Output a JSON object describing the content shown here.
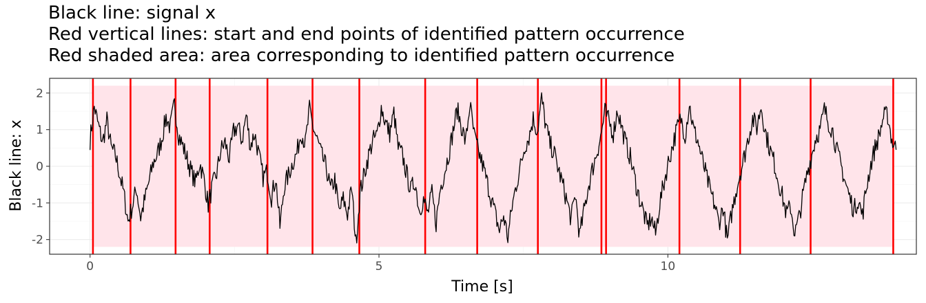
{
  "chart_data": {
    "type": "line",
    "title_lines": [
      "Black line: signal x",
      "Red vertical lines: start and end points of identified pattern occurrence",
      "Red shaded area: area corresponding to identified pattern occurrence"
    ],
    "xlabel": "Time [s]",
    "ylabel": "Black line: x",
    "xlim": [
      -0.7,
      14.3
    ],
    "ylim": [
      -2.4,
      2.4
    ],
    "x_ticks": [
      0,
      5,
      10
    ],
    "x_tick_labels": [
      "0",
      "5",
      "10"
    ],
    "y_ticks": [
      2,
      1,
      0,
      -1,
      -2
    ],
    "y_tick_labels": [
      "2",
      "1",
      "0",
      "-1",
      "-2"
    ],
    "grid": true,
    "theme": "bw",
    "shaded_region": {
      "x_start": 0.05,
      "x_end": 13.9,
      "y_min": -2.2,
      "y_max": 2.2,
      "color": "#ffe4ea"
    },
    "red_vertical_lines": [
      0.05,
      0.7,
      1.48,
      2.07,
      3.07,
      3.85,
      4.66,
      5.8,
      6.7,
      7.75,
      8.85,
      8.93,
      10.2,
      11.25,
      12.47,
      13.9
    ],
    "series": [
      {
        "color": "#000000",
        "values_note": "",
        "t_start": 0.0,
        "t_end": 13.95,
        "samples": [
          0.72,
          1.62,
          1.1,
          0.65,
          1.25,
          0.5,
          0.3,
          -0.2,
          -0.75,
          -1.5,
          -1.1,
          -0.6,
          -1.4,
          -0.9,
          -0.4,
          0.1,
          0.35,
          0.75,
          1.35,
          1.05,
          1.7,
          0.85,
          0.55,
          0.2,
          -0.15,
          -0.45,
          0.1,
          -0.35,
          -1.05,
          -0.55,
          -0.2,
          0.45,
          0.65,
          0.2,
          0.95,
          1.1,
          0.7,
          1.4,
          0.55,
          0.9,
          0.3,
          -0.3,
          -0.15,
          -0.85,
          -0.3,
          -1.65,
          -0.55,
          -0.25,
          0.1,
          0.35,
          0.95,
          0.6,
          1.55,
          1.0,
          0.65,
          0.25,
          -0.05,
          -0.65,
          -0.35,
          -1.25,
          -0.9,
          -1.3,
          -0.6,
          -2.1,
          -0.7,
          -0.2,
          0.3,
          0.7,
          0.85,
          1.6,
          1.2,
          0.9,
          1.45,
          0.5,
          0.3,
          -0.2,
          -0.65,
          -0.4,
          -1.2,
          -0.9,
          -1.3,
          -0.75,
          -1.55,
          -0.6,
          -0.15,
          0.35,
          0.95,
          1.55,
          1.1,
          0.65,
          1.7,
          0.85,
          0.4,
          0.05,
          -0.4,
          -0.85,
          -1.3,
          -1.75,
          -1.35,
          -1.95,
          -1.1,
          -0.5,
          0.0,
          0.55,
          0.8,
          1.3,
          0.95,
          1.85,
          1.1,
          0.6,
          0.35,
          -0.1,
          -0.5,
          -0.95,
          -1.45,
          -0.75,
          -1.9,
          -1.25,
          -0.6,
          -0.1,
          0.35,
          0.8,
          1.5,
          1.2,
          0.9,
          1.55,
          1.05,
          0.6,
          0.25,
          -0.3,
          -0.8,
          -1.2,
          -1.65,
          -1.4,
          -1.85,
          -1.0,
          -0.45,
          0.1,
          0.55,
          1.0,
          1.3,
          0.85,
          1.7,
          1.0,
          0.7,
          0.2,
          -0.25,
          -0.7,
          -1.05,
          -1.55,
          -1.1,
          -2.05,
          -1.3,
          -0.7,
          -0.2,
          0.25,
          0.8,
          1.3,
          1.05,
          1.65,
          0.95,
          0.5,
          0.15,
          -0.35,
          -0.8,
          -1.3,
          -1.1,
          -1.85,
          -1.4,
          -0.75,
          -0.15,
          0.3,
          0.8,
          1.0,
          1.55,
          1.2,
          0.95,
          0.4,
          0.0,
          -0.45,
          -0.85,
          -1.2,
          -0.9,
          -1.35,
          -0.55,
          0.05,
          0.5,
          0.85,
          1.35,
          1.4,
          0.7,
          0.45
        ]
      }
    ]
  }
}
